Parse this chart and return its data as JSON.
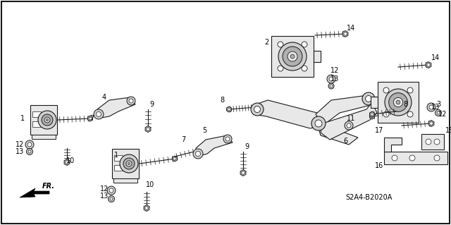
{
  "background_color": "#ffffff",
  "border_color": "#000000",
  "diagram_code": "S2A4-B2020A",
  "figsize": [
    6.4,
    3.19
  ],
  "dpi": 100,
  "line_color": "#1a1a1a",
  "fill_light": "#e8e8e8",
  "fill_mid": "#d0d0d0",
  "fill_dark": "#b0b0b0",
  "fr_label": "FR."
}
